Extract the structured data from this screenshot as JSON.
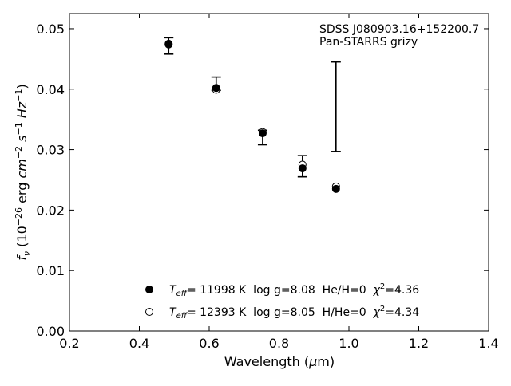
{
  "chart_data": {
    "type": "scatter",
    "xlabel": "Wavelength (μm)",
    "ylabel": "f_ν (10^−26 erg cm^−2 s^−1 Hz^−1)",
    "xlim": [
      0.2,
      1.4
    ],
    "ylim": [
      0.0,
      0.0525
    ],
    "xticks": [
      "0.2",
      "0.4",
      "0.6",
      "0.8",
      "1.0",
      "1.2",
      "1.4"
    ],
    "yticks": [
      "0.00",
      "0.01",
      "0.02",
      "0.03",
      "0.04",
      "0.05"
    ],
    "grid": false,
    "annotations": [
      "SDSS J080903.16+152200.7",
      "Pan-STARRS grizy"
    ],
    "observed": {
      "x": [
        0.484,
        0.62,
        0.753,
        0.867,
        0.963
      ],
      "y_low": [
        0.0458,
        0.0398,
        0.0308,
        0.0255,
        0.0297
      ],
      "y_high": [
        0.0485,
        0.042,
        0.0332,
        0.029,
        0.0445
      ]
    },
    "series": [
      {
        "name": "T_eff= 11998 K  log g=8.08  He/H=0  χ²=4.36",
        "marker": "filled",
        "x": [
          0.484,
          0.62,
          0.753,
          0.867,
          0.963
        ],
        "y": [
          0.0475,
          0.0402,
          0.0327,
          0.0269,
          0.0235
        ]
      },
      {
        "name": "T_eff= 12393 K  log g=8.05  H/He=0  χ²=4.34",
        "marker": "open",
        "x": [
          0.484,
          0.62,
          0.753,
          0.867,
          0.963
        ],
        "y": [
          0.0474,
          0.0399,
          0.0329,
          0.0275,
          0.0239
        ]
      }
    ],
    "legend": {
      "location": "lower-center",
      "entries": [
        {
          "teff_symbol": "T",
          "teff_sub": "eff",
          "text": "= 11998 K  log g=8.08  He/H=0  ",
          "chi": "χ",
          "chi_sup": "2",
          "chi_val": "=4.36"
        },
        {
          "teff_symbol": "T",
          "teff_sub": "eff",
          "text": "= 12393 K  log g=8.05  H/He=0  ",
          "chi": "χ",
          "chi_sup": "2",
          "chi_val": "=4.34"
        }
      ]
    },
    "colors": {
      "marker": "#000000",
      "errorbar": "#000000"
    }
  }
}
